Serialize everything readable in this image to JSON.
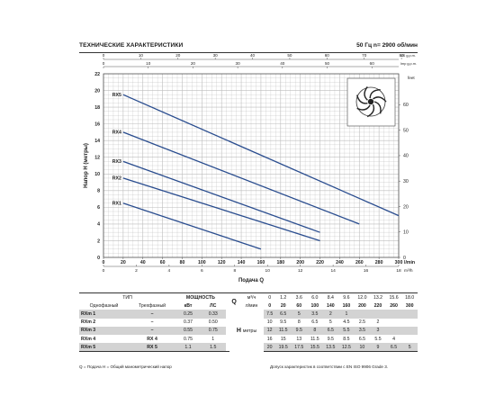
{
  "header": {
    "title": "ТЕХНИЧЕСКИЕ ХАРАКТЕРИСТИКИ",
    "spec": "50 Гц   n= 2900 об/мин"
  },
  "chart_data": {
    "type": "line",
    "title": "",
    "xlabel": "Подача Q",
    "ylabel": "Напор  H (метры)",
    "y2label": "feet",
    "x": {
      "unit": "l/min",
      "range": [
        0,
        300
      ],
      "ticks": [
        0,
        20,
        40,
        60,
        80,
        100,
        120,
        140,
        160,
        180,
        200,
        220,
        240,
        260,
        280,
        300
      ]
    },
    "x_m3h": {
      "unit": "m³/h",
      "range": [
        0,
        18
      ],
      "ticks": [
        "0",
        "2",
        "4",
        "6",
        "8",
        "10",
        "12",
        "14",
        "16",
        "18"
      ]
    },
    "x_us_gpm": {
      "unit": "US g.p.m.",
      "range": [
        0,
        80
      ],
      "ticks": [
        "0",
        "10",
        "20",
        "30",
        "40",
        "50",
        "60",
        "70",
        "80"
      ]
    },
    "x_imp_gpm": {
      "unit": "Imp g.p.m.",
      "range": [
        0,
        65
      ],
      "ticks": [
        "0",
        "10",
        "20",
        "30",
        "40",
        "50",
        "60"
      ]
    },
    "y": {
      "unit": "m",
      "range": [
        0,
        22
      ],
      "ticks": [
        0,
        2,
        4,
        6,
        8,
        10,
        12,
        14,
        16,
        18,
        20,
        22
      ]
    },
    "y_feet": {
      "unit": "feet",
      "range": [
        0,
        70
      ],
      "ticks": [
        0,
        10,
        20,
        30,
        40,
        50,
        60
      ]
    },
    "grid": true,
    "series": [
      {
        "name": "RX1",
        "points": [
          [
            20,
            6.5
          ],
          [
            160,
            1
          ]
        ]
      },
      {
        "name": "RX2",
        "points": [
          [
            20,
            9.5
          ],
          [
            220,
            2
          ]
        ]
      },
      {
        "name": "RX3",
        "points": [
          [
            20,
            11.5
          ],
          [
            220,
            3
          ]
        ]
      },
      {
        "name": "RX4",
        "points": [
          [
            20,
            15
          ],
          [
            260,
            4
          ]
        ]
      },
      {
        "name": "RX5",
        "points": [
          [
            20,
            19.5
          ],
          [
            300,
            5
          ]
        ]
      }
    ]
  },
  "table": {
    "tip": "ТИП",
    "single_phase": "Однофазный",
    "three_phase": "Трехфазный",
    "power": "МОЩНОСТЬ",
    "kw": "кВт",
    "hp": "ЛС",
    "q": "Q",
    "m3h": "м³/ч",
    "lmin": "л/мин",
    "h": "H",
    "h_unit": "метры",
    "m3h_values": [
      "0",
      "1.2",
      "3.6",
      "6.0",
      "8.4",
      "9.6",
      "12.0",
      "13.2",
      "15.6",
      "18.0"
    ],
    "lmin_values": [
      "0",
      "20",
      "60",
      "100",
      "140",
      "160",
      "200",
      "220",
      "260",
      "300"
    ],
    "rows": [
      {
        "single": "RXm 1",
        "three": "–",
        "kw": "0.25",
        "hp": "0.33",
        "h": [
          "7.5",
          "6.5",
          "5",
          "3.5",
          "2",
          "1",
          "",
          "",
          "",
          ""
        ]
      },
      {
        "single": "RXm 2",
        "three": "–",
        "kw": "0.37",
        "hp": "0.50",
        "h": [
          "10",
          "9.5",
          "8",
          "6.5",
          "5",
          "4.5",
          "2.5",
          "2",
          "",
          ""
        ]
      },
      {
        "single": "RXm 3",
        "three": "–",
        "kw": "0.55",
        "hp": "0.75",
        "h": [
          "12",
          "11.5",
          "9.5",
          "8",
          "6.5",
          "5.5",
          "3.5",
          "3",
          "",
          ""
        ]
      },
      {
        "single": "RXm 4",
        "three": "RX 4",
        "kw": "0.75",
        "hp": "1",
        "h": [
          "16",
          "15",
          "13",
          "11.5",
          "9.5",
          "8.5",
          "6.5",
          "5.5",
          "4",
          ""
        ]
      },
      {
        "single": "RXm 5",
        "three": "RX 5",
        "kw": "1.1",
        "hp": "1.5",
        "h": [
          "20",
          "19.5",
          "17.5",
          "15.5",
          "13.5",
          "12.5",
          "10",
          "9",
          "6.5",
          "5"
        ]
      }
    ]
  },
  "footer": {
    "left": "Q = Подача   H = Общий манометрический напор",
    "right": "Допуск характеристик в соответствии с EN ISO 9906 Grade 3."
  },
  "style": {
    "curve_color": "#2a4d8f",
    "grid_color": "#bdbdbd",
    "shade_color": "#d3d3d3"
  }
}
